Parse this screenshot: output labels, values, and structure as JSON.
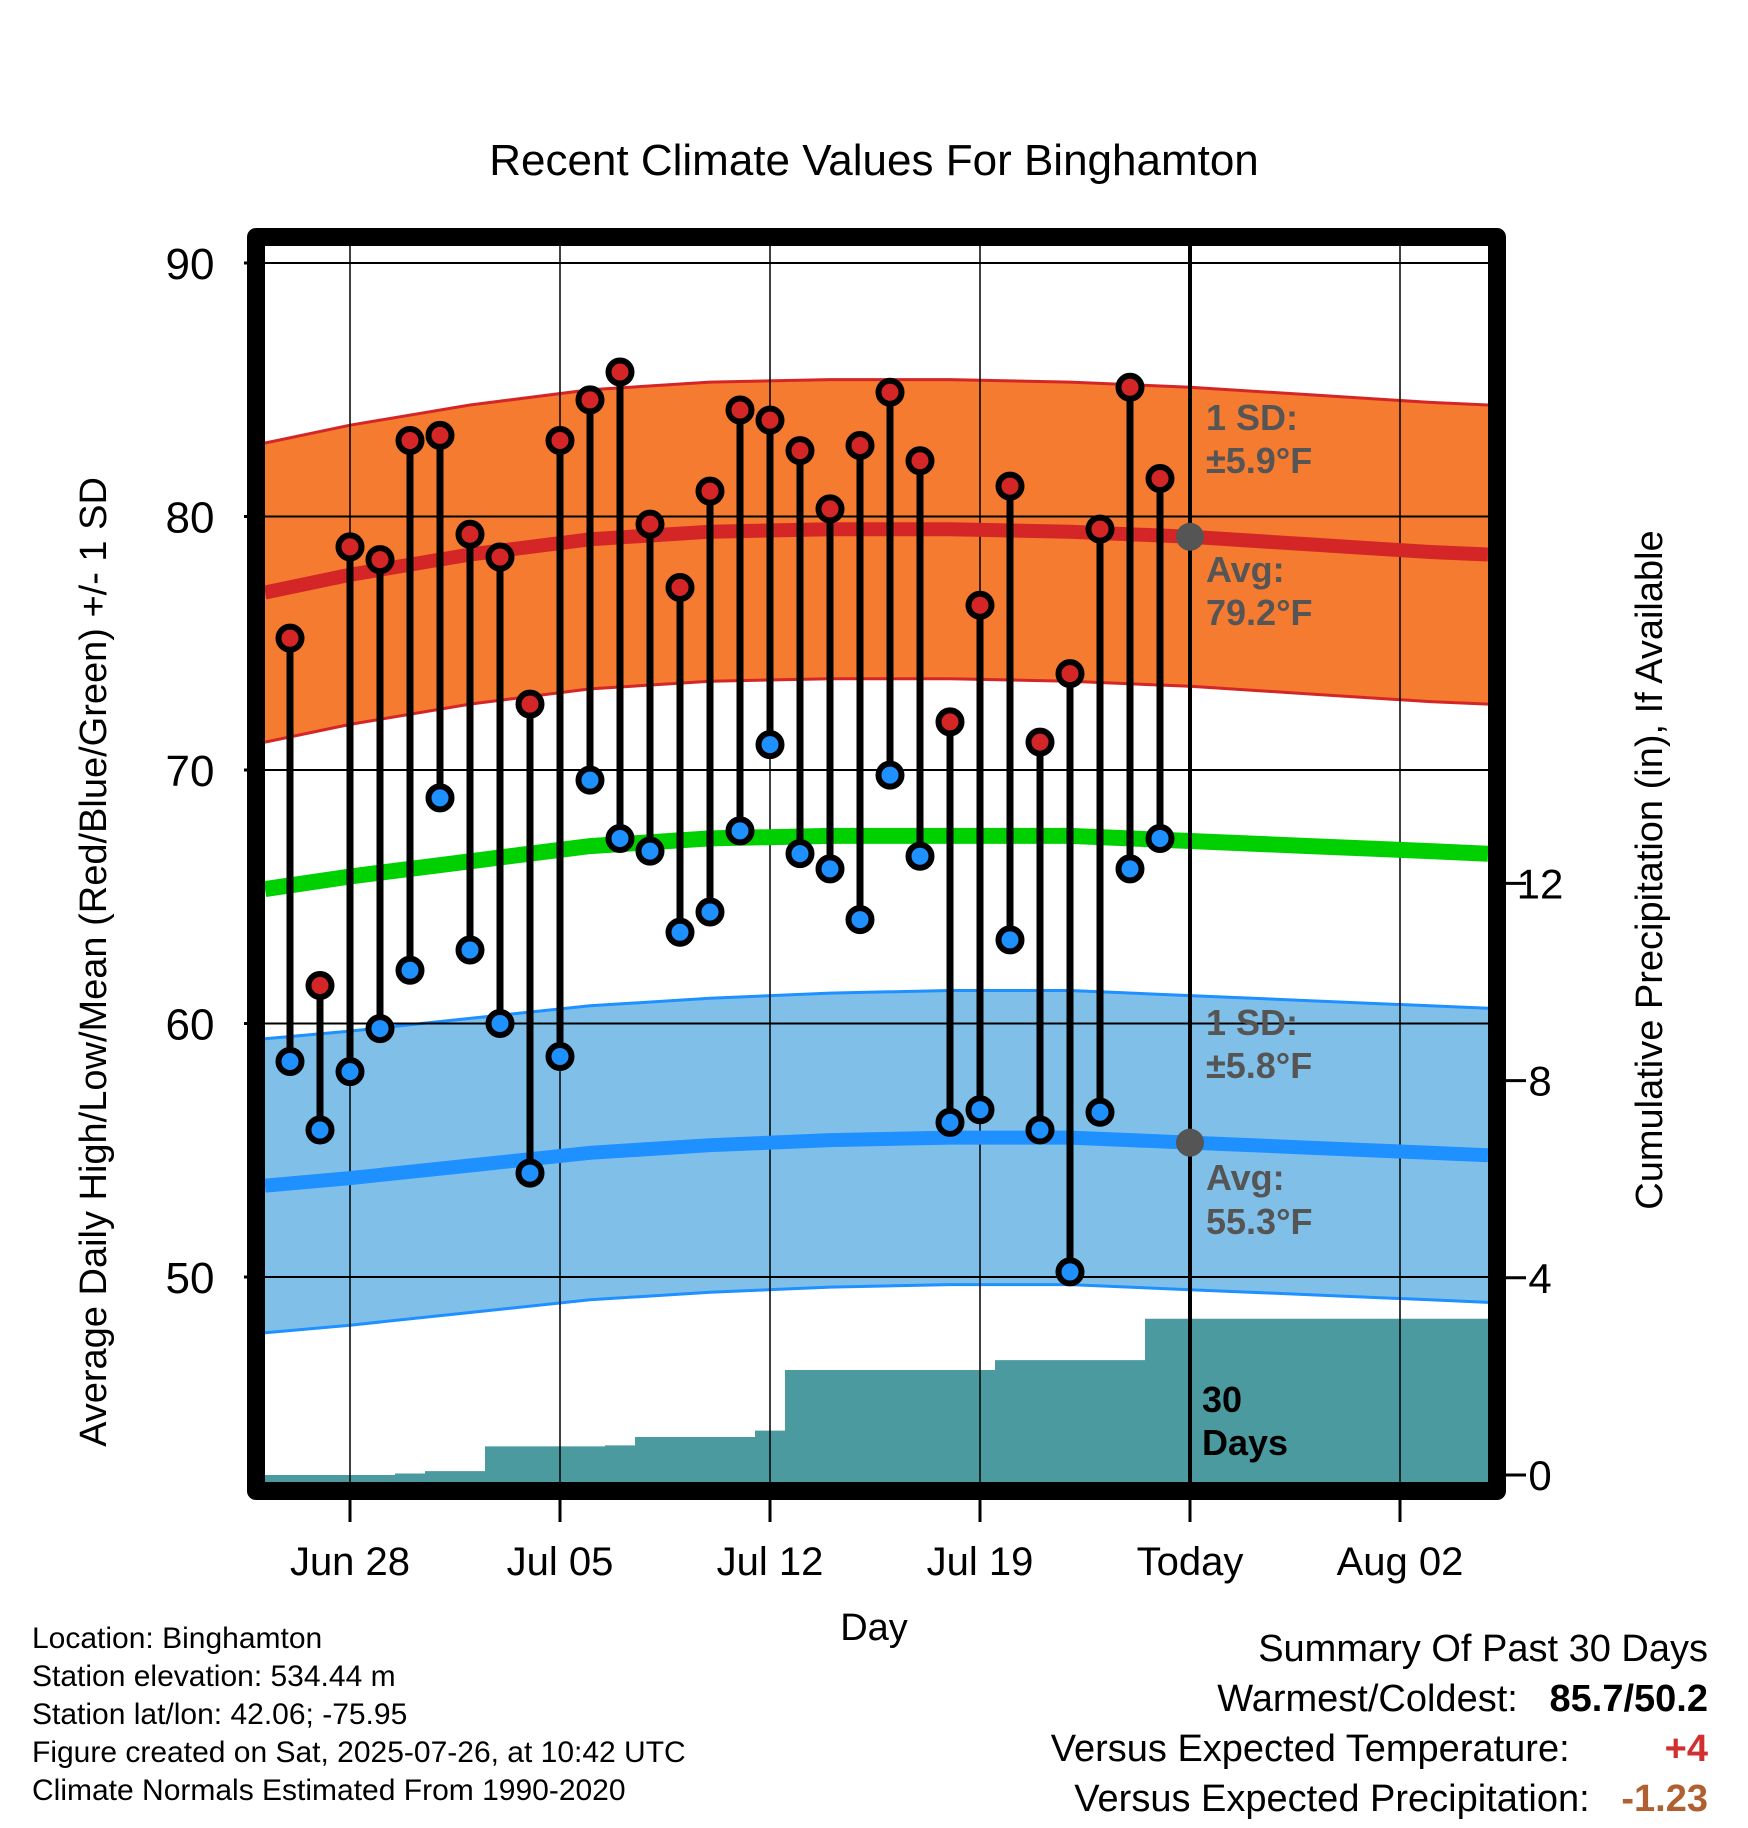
{
  "chart_data": {
    "type": "line",
    "title": "Recent Climate Values For Binghamton",
    "xlabel": "Day",
    "ylabel": "Average Daily High/Low/Mean (Red/Blue/Green) +/- 1 SD",
    "y2label": "Cumulative Precipitation (in), If Available",
    "ylim": [
      42,
      91
    ],
    "y2lim": [
      0,
      18
    ],
    "x_tick_labels": [
      "Jun 28",
      "Jul 05",
      "Jul 12",
      "Jul 19",
      "Today",
      "Aug 02"
    ],
    "y_ticks": [
      50,
      60,
      70,
      80,
      90
    ],
    "y2_ticks": [
      0,
      4,
      8,
      12
    ],
    "grid": true,
    "dates": [
      "Jun 26",
      "Jun 27",
      "Jun 28",
      "Jun 29",
      "Jun 30",
      "Jul 01",
      "Jul 02",
      "Jul 03",
      "Jul 04",
      "Jul 05",
      "Jul 06",
      "Jul 07",
      "Jul 08",
      "Jul 09",
      "Jul 10",
      "Jul 11",
      "Jul 12",
      "Jul 13",
      "Jul 14",
      "Jul 15",
      "Jul 16",
      "Jul 17",
      "Jul 18",
      "Jul 19",
      "Jul 20",
      "Jul 21",
      "Jul 22",
      "Jul 23",
      "Jul 24",
      "Jul 25"
    ],
    "series": [
      {
        "name": "High",
        "values": [
          75.2,
          61.5,
          78.8,
          78.3,
          83.0,
          83.2,
          79.3,
          78.4,
          72.6,
          83.0,
          84.6,
          85.7,
          79.7,
          77.2,
          81.0,
          84.2,
          83.8,
          82.6,
          80.3,
          82.8,
          84.9,
          82.2,
          71.9,
          76.5,
          81.2,
          71.1,
          73.8,
          79.5,
          85.1,
          81.5
        ]
      },
      {
        "name": "Low",
        "values": [
          58.5,
          55.8,
          58.1,
          59.8,
          62.1,
          68.9,
          62.9,
          60.0,
          54.1,
          58.7,
          69.6,
          67.3,
          66.8,
          63.6,
          64.4,
          67.6,
          71.0,
          66.7,
          66.1,
          64.1,
          69.8,
          66.6,
          56.1,
          56.6,
          63.3,
          55.8,
          50.2,
          56.5,
          66.1,
          67.3
        ]
      },
      {
        "name": "Precipitation",
        "values": [
          0,
          0,
          0,
          0,
          0.03,
          0.08,
          0.08,
          0.58,
          0.58,
          0.58,
          0.58,
          0.6,
          0.77,
          0.77,
          0.77,
          0.77,
          0.9,
          2.13,
          2.13,
          2.13,
          2.13,
          2.13,
          2.13,
          2.13,
          2.33,
          2.33,
          2.33,
          2.33,
          2.33,
          3.17
        ]
      }
    ],
    "normals_dates": [
      "Jun 25",
      "Jun 28",
      "Jul 02",
      "Jul 06",
      "Jul 10",
      "Jul 14",
      "Jul 18",
      "Jul 22",
      "Jul 26",
      "Jul 30",
      "Aug 03",
      "Aug 05"
    ],
    "avg_high": [
      77.0,
      77.7,
      78.5,
      79.1,
      79.4,
      79.5,
      79.5,
      79.4,
      79.2,
      78.9,
      78.6,
      78.5
    ],
    "avg_low": [
      53.6,
      53.9,
      54.4,
      54.9,
      55.2,
      55.4,
      55.5,
      55.5,
      55.3,
      55.1,
      54.9,
      54.8
    ],
    "avg_mean": [
      65.3,
      65.8,
      66.4,
      67.0,
      67.3,
      67.4,
      67.4,
      67.4,
      67.2,
      67.0,
      66.8,
      66.7
    ],
    "high_sd": 5.9,
    "low_sd": 5.8,
    "precip_days": "30",
    "precip_days_label": "Days",
    "annotations": {
      "high_sd_label": "1 SD:",
      "high_sd_value": "±5.9°F",
      "high_avg_label": "Avg:",
      "high_avg_value": "79.2°F",
      "low_sd_label": "1 SD:",
      "low_sd_value": "±5.8°F",
      "low_avg_label": "Avg:",
      "low_avg_value": "55.3°F"
    }
  },
  "info": {
    "location": "Location: Binghamton",
    "elevation": "Station elevation: 534.44 m",
    "latlon": "Station lat/lon: 42.06; -75.95",
    "created": "Figure created on Sat, 2025-07-26, at 10:42 UTC",
    "normals": "Climate Normals Estimated From 1990-2020"
  },
  "summary": {
    "heading": "Summary Of Past 30 Days",
    "warm_cold_label": "Warmest/Coldest:",
    "warm_cold_value": "85.7/50.2",
    "temp_label": "Versus Expected Temperature:",
    "temp_value": "+4",
    "precip_label": "Versus Expected Precipitation:",
    "precip_value": "-1.23"
  },
  "colors": {
    "high_band": "#f47b30",
    "high_line": "#d42626",
    "low_band": "#80c0e8",
    "low_line": "#1e90ff",
    "mean_line": "#00d000",
    "precip": "#4a9aa0",
    "high_dot": "#d42626",
    "low_dot": "#1e90ff",
    "annotation": "#555555",
    "temp_delta": "#d03030",
    "precip_delta": "#b06030"
  }
}
